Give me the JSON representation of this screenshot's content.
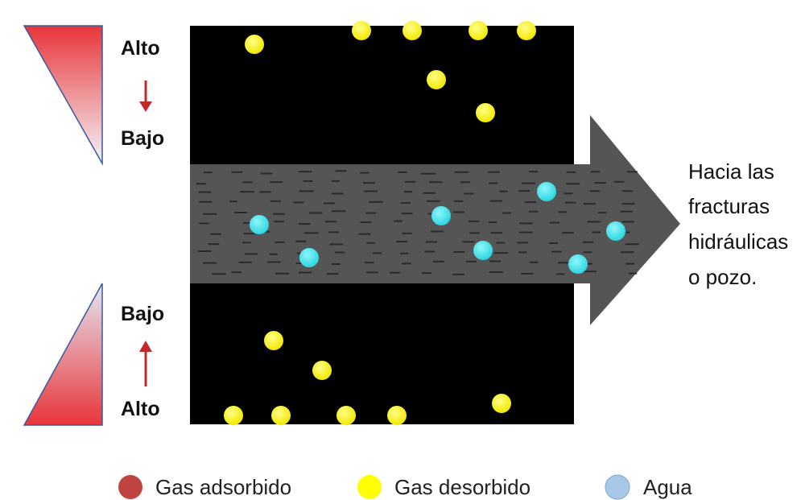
{
  "gradient_top": {
    "label_top": "Alto",
    "label_bottom": "Bajo"
  },
  "gradient_bottom": {
    "label_top": "Bajo",
    "label_bottom": "Alto"
  },
  "destination_lines": [
    "Hacia las",
    "fracturas",
    "hidráulicas",
    "o pozo."
  ],
  "legend": [
    {
      "label": "Gas adsorbido",
      "color": "#c0443f"
    },
    {
      "label": "Gas desorbido",
      "color": "#ffff00"
    },
    {
      "label": "Agua",
      "color": "#a8c8e8"
    }
  ],
  "colors": {
    "matrix": "#000000",
    "channel": "#555555",
    "gas_desorbido": "#ffff00",
    "agua": "#40e0e8",
    "gradient_high": "#e8353a",
    "arrow": "#c0282a"
  }
}
